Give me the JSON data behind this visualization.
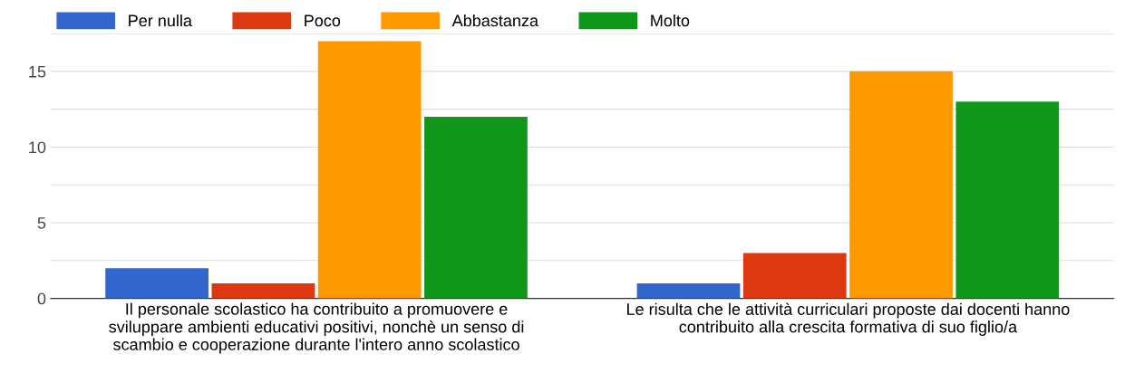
{
  "chart_data": {
    "type": "bar",
    "categories": [
      "Il personale scolastico ha contribuito a promuovere e\nsviluppare ambienti educativi positivi, nonchè un senso di\nscambio e cooperazione durante l'intero anno scolastico",
      "Le risulta che le attività curriculari proposte dai docenti hanno\ncontribuito alla crescita formativa di suo figlio/a"
    ],
    "series": [
      {
        "name": "Per nulla",
        "color": "#3366cc",
        "values": [
          2,
          1
        ]
      },
      {
        "name": "Poco",
        "color": "#dc3912",
        "values": [
          1,
          3
        ]
      },
      {
        "name": "Abbastanza",
        "color": "#ff9900",
        "values": [
          17,
          15
        ]
      },
      {
        "name": "Molto",
        "color": "#109618",
        "values": [
          12,
          13
        ]
      }
    ],
    "ylim": [
      0,
      17.5
    ],
    "yticks": [
      0,
      {
        "value": 2.5,
        "label": null
      },
      5,
      {
        "value": 7.5,
        "label": null
      },
      10,
      {
        "value": 12.5,
        "label": null
      },
      15,
      {
        "value": 17.5,
        "label": null
      }
    ],
    "grid": "y",
    "legend": "top left"
  }
}
